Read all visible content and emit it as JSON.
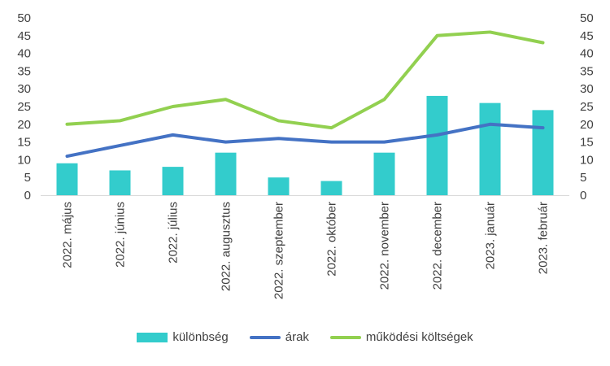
{
  "chart_data": {
    "type": "bar",
    "categories": [
      "2022. május",
      "2022. június",
      "2022. július",
      "2022. augusztus",
      "2022. szeptember",
      "2022. október",
      "2022. november",
      "2022. december",
      "2023. január",
      "2023. február"
    ],
    "series": [
      {
        "name": "különbség",
        "kind": "bar",
        "color": "#33cccc",
        "values": [
          9,
          7,
          8,
          12,
          5,
          4,
          12,
          28,
          26,
          24
        ]
      },
      {
        "name": "árak",
        "kind": "line",
        "color": "#4472c4",
        "values": [
          11,
          14,
          17,
          15,
          16,
          15,
          15,
          17,
          20,
          19
        ]
      },
      {
        "name": "működési költségek",
        "kind": "line",
        "color": "#92d050",
        "values": [
          20,
          21,
          25,
          27,
          21,
          19,
          27,
          45,
          46,
          43
        ]
      }
    ],
    "y_ticks": [
      "0",
      "5",
      "10",
      "15",
      "20",
      "25",
      "30",
      "35",
      "40",
      "45",
      "50"
    ],
    "ylim": [
      0,
      50
    ],
    "y2lim": [
      0,
      50
    ],
    "grid": false,
    "legend": "bottom"
  }
}
